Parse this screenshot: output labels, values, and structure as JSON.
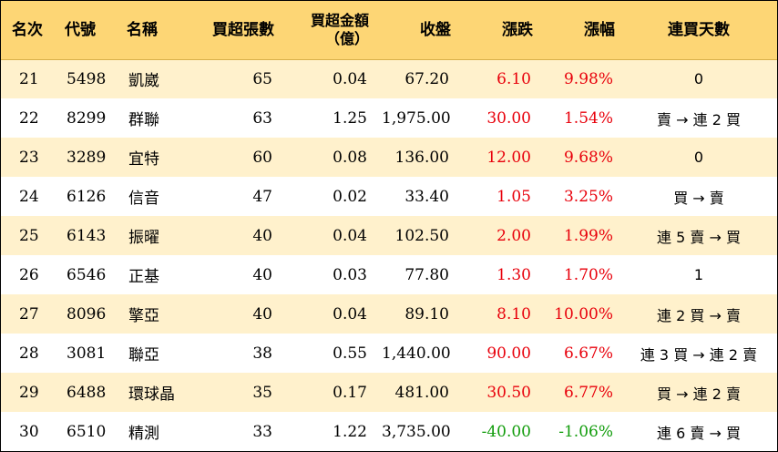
{
  "header": {
    "rank": "名次",
    "code": "代號",
    "name": "名稱",
    "buy_volume": "買超張數",
    "buy_amount_line1": "買超金額",
    "buy_amount_line2": "（億）",
    "close": "收盤",
    "change": "漲跌",
    "change_pct": "漲幅",
    "streak": "連買天數"
  },
  "colors": {
    "header_bg": "#fdd675",
    "row_alt_bg": "#fff1cc",
    "up": "#e8000b",
    "down": "#119c0b"
  },
  "rows": [
    {
      "rank": "21",
      "code": "5498",
      "name": "凱崴",
      "buy_volume": "65",
      "buy_amount": "0.04",
      "close": "67.20",
      "change": "6.10",
      "change_pct": "9.98%",
      "direction": "up",
      "streak": "0"
    },
    {
      "rank": "22",
      "code": "8299",
      "name": "群聯",
      "buy_volume": "63",
      "buy_amount": "1.25",
      "close": "1,975.00",
      "change": "30.00",
      "change_pct": "1.54%",
      "direction": "up",
      "streak": "賣 → 連 2 買"
    },
    {
      "rank": "23",
      "code": "3289",
      "name": "宜特",
      "buy_volume": "60",
      "buy_amount": "0.08",
      "close": "136.00",
      "change": "12.00",
      "change_pct": "9.68%",
      "direction": "up",
      "streak": "0"
    },
    {
      "rank": "24",
      "code": "6126",
      "name": "信音",
      "buy_volume": "47",
      "buy_amount": "0.02",
      "close": "33.40",
      "change": "1.05",
      "change_pct": "3.25%",
      "direction": "up",
      "streak": "買 → 賣"
    },
    {
      "rank": "25",
      "code": "6143",
      "name": "振曜",
      "buy_volume": "40",
      "buy_amount": "0.04",
      "close": "102.50",
      "change": "2.00",
      "change_pct": "1.99%",
      "direction": "up",
      "streak": "連 5 賣 → 買"
    },
    {
      "rank": "26",
      "code": "6546",
      "name": "正基",
      "buy_volume": "40",
      "buy_amount": "0.03",
      "close": "77.80",
      "change": "1.30",
      "change_pct": "1.70%",
      "direction": "up",
      "streak": "1"
    },
    {
      "rank": "27",
      "code": "8096",
      "name": "擎亞",
      "buy_volume": "40",
      "buy_amount": "0.04",
      "close": "89.10",
      "change": "8.10",
      "change_pct": "10.00%",
      "direction": "up",
      "streak": "連 2 買 → 賣"
    },
    {
      "rank": "28",
      "code": "3081",
      "name": "聯亞",
      "buy_volume": "38",
      "buy_amount": "0.55",
      "close": "1,440.00",
      "change": "90.00",
      "change_pct": "6.67%",
      "direction": "up",
      "streak": "連 3 買 → 連 2 賣"
    },
    {
      "rank": "29",
      "code": "6488",
      "name": "環球晶",
      "buy_volume": "35",
      "buy_amount": "0.17",
      "close": "481.00",
      "change": "30.50",
      "change_pct": "6.77%",
      "direction": "up",
      "streak": "買 → 連 2 賣"
    },
    {
      "rank": "30",
      "code": "6510",
      "name": "精測",
      "buy_volume": "33",
      "buy_amount": "1.22",
      "close": "3,735.00",
      "change": "-40.00",
      "change_pct": "-1.06%",
      "direction": "down",
      "streak": "連 6 賣 → 買"
    }
  ]
}
